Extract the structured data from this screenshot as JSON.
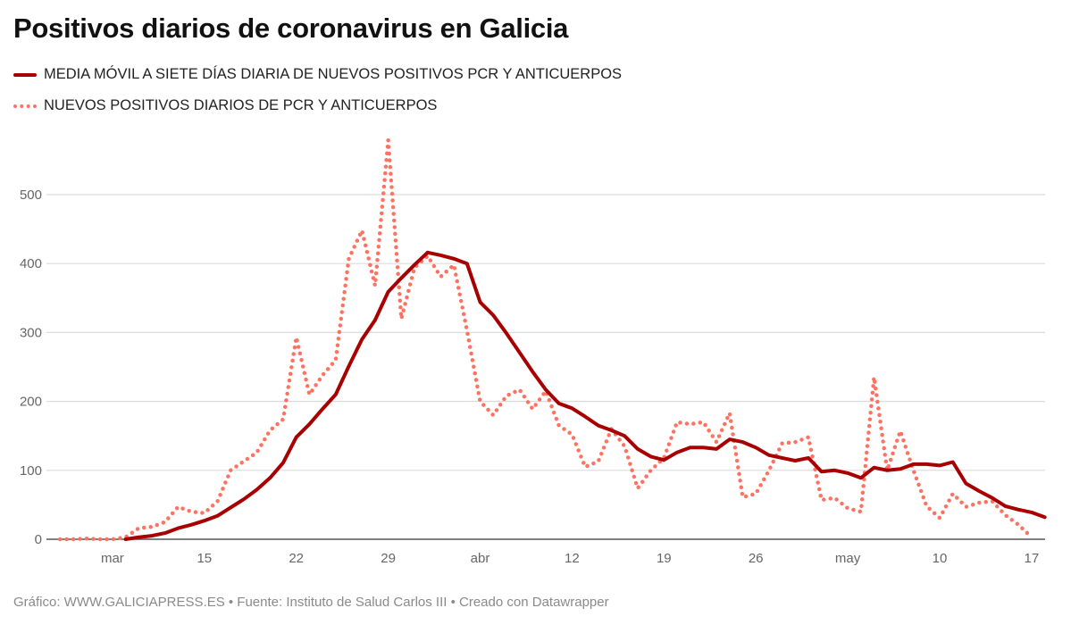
{
  "title": "Positivos diarios de coronavirus en Galicia",
  "footer": "Gráfico: WWW.GALICIAPRESS.ES • Fuente: Instituto de Salud Carlos III • Creado con Datawrapper",
  "chart_data": {
    "type": "line",
    "title": "Positivos diarios de coronavirus en Galicia",
    "xlabel": "",
    "ylabel": "",
    "ylim": [
      0,
      590
    ],
    "grid": true,
    "legend_placement": "top-left",
    "y_ticks": [
      0,
      100,
      200,
      300,
      400,
      500
    ],
    "x_ticks": [
      {
        "date": "03-08",
        "label": "mar"
      },
      {
        "date": "03-15",
        "label": "15"
      },
      {
        "date": "03-22",
        "label": "22"
      },
      {
        "date": "03-29",
        "label": "29"
      },
      {
        "date": "04-05",
        "label": "abr"
      },
      {
        "date": "04-12",
        "label": "12"
      },
      {
        "date": "04-19",
        "label": "19"
      },
      {
        "date": "04-26",
        "label": "26"
      },
      {
        "date": "05-03",
        "label": "may"
      },
      {
        "date": "05-10",
        "label": "10"
      },
      {
        "date": "05-17",
        "label": "17"
      }
    ],
    "x": [
      "03-04",
      "03-05",
      "03-06",
      "03-07",
      "03-08",
      "03-09",
      "03-10",
      "03-11",
      "03-12",
      "03-13",
      "03-14",
      "03-15",
      "03-16",
      "03-17",
      "03-18",
      "03-19",
      "03-20",
      "03-21",
      "03-22",
      "03-23",
      "03-24",
      "03-25",
      "03-26",
      "03-27",
      "03-28",
      "03-29",
      "03-30",
      "03-31",
      "04-01",
      "04-02",
      "04-03",
      "04-04",
      "04-05",
      "04-06",
      "04-07",
      "04-08",
      "04-09",
      "04-10",
      "04-11",
      "04-12",
      "04-13",
      "04-14",
      "04-15",
      "04-16",
      "04-17",
      "04-18",
      "04-19",
      "04-20",
      "04-21",
      "04-22",
      "04-23",
      "04-24",
      "04-25",
      "04-26",
      "04-27",
      "04-28",
      "04-29",
      "04-30",
      "05-01",
      "05-02",
      "05-03",
      "05-04",
      "05-05",
      "05-06",
      "05-07",
      "05-08",
      "05-09",
      "05-10",
      "05-11",
      "05-12",
      "05-13",
      "05-14",
      "05-15",
      "05-16",
      "05-17",
      "05-18"
    ],
    "series": [
      {
        "name": "MEDIA MÓVIL A SIETE DÍAS DIARIA DE NUEVOS POSITIVOS PCR Y ANTICUERPOS",
        "style": "solid",
        "color": "#a80000",
        "values": [
          null,
          null,
          null,
          null,
          null,
          0,
          3,
          5,
          9,
          16,
          21,
          27,
          34,
          46,
          58,
          72,
          89,
          111,
          148,
          167,
          189,
          210,
          251,
          290,
          318,
          359,
          379,
          398,
          416,
          412,
          407,
          400,
          344,
          325,
          299,
          271,
          243,
          217,
          197,
          190,
          178,
          165,
          158,
          150,
          131,
          120,
          115,
          126,
          133,
          133,
          131,
          145,
          141,
          133,
          122,
          118,
          114,
          118,
          98,
          100,
          96,
          89,
          104,
          100,
          102,
          109,
          109,
          107,
          112,
          81,
          70,
          60,
          48,
          43,
          39,
          32
        ]
      },
      {
        "name": "NUEVOS POSITIVOS DIARIOS DE PCR Y ANTICUERPOS",
        "style": "dotted",
        "color": "#ff7262",
        "values": [
          0,
          0,
          1,
          0,
          0,
          3,
          16,
          18,
          25,
          47,
          40,
          38,
          55,
          100,
          113,
          126,
          158,
          174,
          293,
          210,
          238,
          260,
          407,
          448,
          368,
          579,
          320,
          394,
          411,
          381,
          398,
          303,
          200,
          180,
          208,
          217,
          189,
          215,
          165,
          152,
          105,
          113,
          160,
          135,
          74,
          100,
          118,
          170,
          167,
          170,
          141,
          183,
          61,
          66,
          100,
          139,
          141,
          148,
          57,
          60,
          45,
          40,
          235,
          100,
          157,
          100,
          48,
          31,
          66,
          47,
          53,
          55,
          35,
          21,
          3,
          null
        ]
      }
    ]
  }
}
